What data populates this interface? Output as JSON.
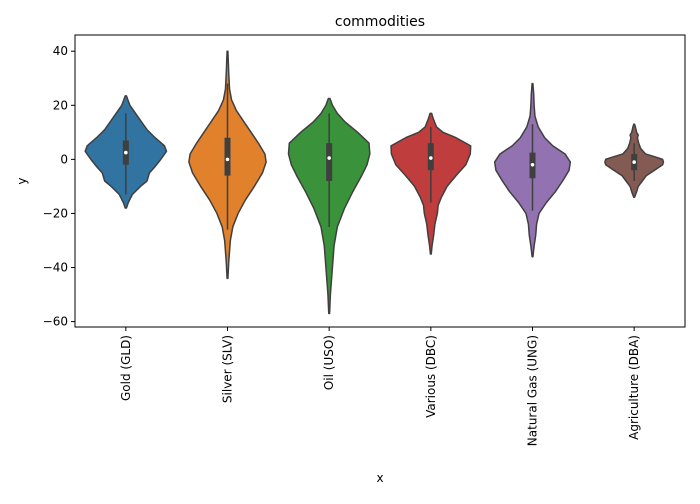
{
  "chart_data": {
    "type": "violin",
    "title": "commodities",
    "xlabel": "x",
    "ylabel": "y",
    "ylim": [
      -62,
      46
    ],
    "yticks": [
      40,
      20,
      0,
      -20,
      -40,
      -60
    ],
    "ytick_labels": [
      "40",
      "20",
      "0",
      "−20",
      "−40",
      "−60"
    ],
    "grid": false,
    "categories": [
      "Gold (GLD)",
      "Silver (SLV)",
      "Oil (USO)",
      "Various (DBC)",
      "Natural Gas (UNG)",
      "Agriculture (DBA)"
    ],
    "colors": [
      "#3274a1",
      "#e1812c",
      "#3a923a",
      "#c03d3e",
      "#9372b2",
      "#845b53"
    ],
    "violins": [
      {
        "name": "Gold (GLD)",
        "min": -18,
        "max": 23.5,
        "q1": -2,
        "median": 2.5,
        "q3": 7,
        "whisker_low": -13,
        "whisker_high": 17,
        "profile": [
          [
            -18,
            0.015
          ],
          [
            -16,
            0.06
          ],
          [
            -13,
            0.16
          ],
          [
            -10,
            0.36
          ],
          [
            -8,
            0.52
          ],
          [
            -5,
            0.58
          ],
          [
            -3,
            0.7
          ],
          [
            0,
            0.86
          ],
          [
            3,
            1.0
          ],
          [
            5,
            0.95
          ],
          [
            8,
            0.72
          ],
          [
            11,
            0.52
          ],
          [
            14,
            0.38
          ],
          [
            17,
            0.24
          ],
          [
            20,
            0.1
          ],
          [
            22,
            0.05
          ],
          [
            23.5,
            0.015
          ]
        ]
      },
      {
        "name": "Silver (SLV)",
        "min": -44,
        "max": 40,
        "q1": -6,
        "median": 0,
        "q3": 8,
        "whisker_low": -26,
        "whisker_high": 28,
        "profile": [
          [
            -44,
            0.01
          ],
          [
            -38,
            0.03
          ],
          [
            -30,
            0.07
          ],
          [
            -25,
            0.13
          ],
          [
            -20,
            0.26
          ],
          [
            -15,
            0.44
          ],
          [
            -10,
            0.66
          ],
          [
            -5,
            0.86
          ],
          [
            -1,
            0.95
          ],
          [
            2,
            0.92
          ],
          [
            6,
            0.76
          ],
          [
            10,
            0.58
          ],
          [
            14,
            0.4
          ],
          [
            18,
            0.22
          ],
          [
            22,
            0.1
          ],
          [
            26,
            0.05
          ],
          [
            32,
            0.03
          ],
          [
            36,
            0.02
          ],
          [
            40,
            0.01
          ]
        ]
      },
      {
        "name": "Oil (USO)",
        "min": -57,
        "max": 22.5,
        "q1": -8,
        "median": 0.5,
        "q3": 6,
        "whisker_low": -25,
        "whisker_high": 17,
        "profile": [
          [
            -57,
            0.01
          ],
          [
            -50,
            0.03
          ],
          [
            -40,
            0.08
          ],
          [
            -32,
            0.12
          ],
          [
            -25,
            0.2
          ],
          [
            -18,
            0.38
          ],
          [
            -12,
            0.58
          ],
          [
            -6,
            0.8
          ],
          [
            -2,
            0.93
          ],
          [
            2,
            1.0
          ],
          [
            6,
            0.98
          ],
          [
            10,
            0.7
          ],
          [
            14,
            0.38
          ],
          [
            17,
            0.2
          ],
          [
            20,
            0.08
          ],
          [
            22.5,
            0.02
          ]
        ]
      },
      {
        "name": "Various (DBC)",
        "min": -35,
        "max": 17,
        "q1": -4,
        "median": 0.5,
        "q3": 6,
        "whisker_low": -16,
        "whisker_high": 12,
        "profile": [
          [
            -35,
            0.01
          ],
          [
            -32,
            0.03
          ],
          [
            -28,
            0.07
          ],
          [
            -24,
            0.1
          ],
          [
            -20,
            0.16
          ],
          [
            -17,
            0.18
          ],
          [
            -14,
            0.26
          ],
          [
            -10,
            0.4
          ],
          [
            -6,
            0.62
          ],
          [
            -2,
            0.86
          ],
          [
            2,
            0.97
          ],
          [
            5,
            0.98
          ],
          [
            8,
            0.62
          ],
          [
            10,
            0.3
          ],
          [
            12,
            0.14
          ],
          [
            15,
            0.06
          ],
          [
            17,
            0.02
          ]
        ]
      },
      {
        "name": "Natural Gas (UNG)",
        "min": -36,
        "max": 28,
        "q1": -7,
        "median": -2,
        "q3": 2.5,
        "whisker_low": -19,
        "whisker_high": 13,
        "profile": [
          [
            -36,
            0.01
          ],
          [
            -32,
            0.04
          ],
          [
            -28,
            0.08
          ],
          [
            -24,
            0.1
          ],
          [
            -20,
            0.16
          ],
          [
            -16,
            0.34
          ],
          [
            -12,
            0.56
          ],
          [
            -8,
            0.74
          ],
          [
            -4,
            0.9
          ],
          [
            -1,
            0.93
          ],
          [
            2,
            0.8
          ],
          [
            5,
            0.5
          ],
          [
            8,
            0.3
          ],
          [
            12,
            0.14
          ],
          [
            16,
            0.06
          ],
          [
            20,
            0.04
          ],
          [
            24,
            0.03
          ],
          [
            28,
            0.01
          ]
        ]
      },
      {
        "name": "Agriculture (DBA)",
        "min": -14,
        "max": 13,
        "q1": -4,
        "median": -1,
        "q3": 2,
        "whisker_low": -8,
        "whisker_high": 6,
        "profile": [
          [
            -14,
            0.01
          ],
          [
            -12,
            0.06
          ],
          [
            -10,
            0.1
          ],
          [
            -8,
            0.2
          ],
          [
            -6,
            0.3
          ],
          [
            -4,
            0.5
          ],
          [
            -2,
            0.7
          ],
          [
            -1,
            0.72
          ],
          [
            0,
            0.7
          ],
          [
            1,
            0.5
          ],
          [
            2,
            0.28
          ],
          [
            4,
            0.16
          ],
          [
            6,
            0.11
          ],
          [
            8,
            0.08
          ],
          [
            9,
            0.1
          ],
          [
            10,
            0.06
          ],
          [
            12,
            0.03
          ],
          [
            13,
            0.01
          ]
        ]
      }
    ]
  }
}
